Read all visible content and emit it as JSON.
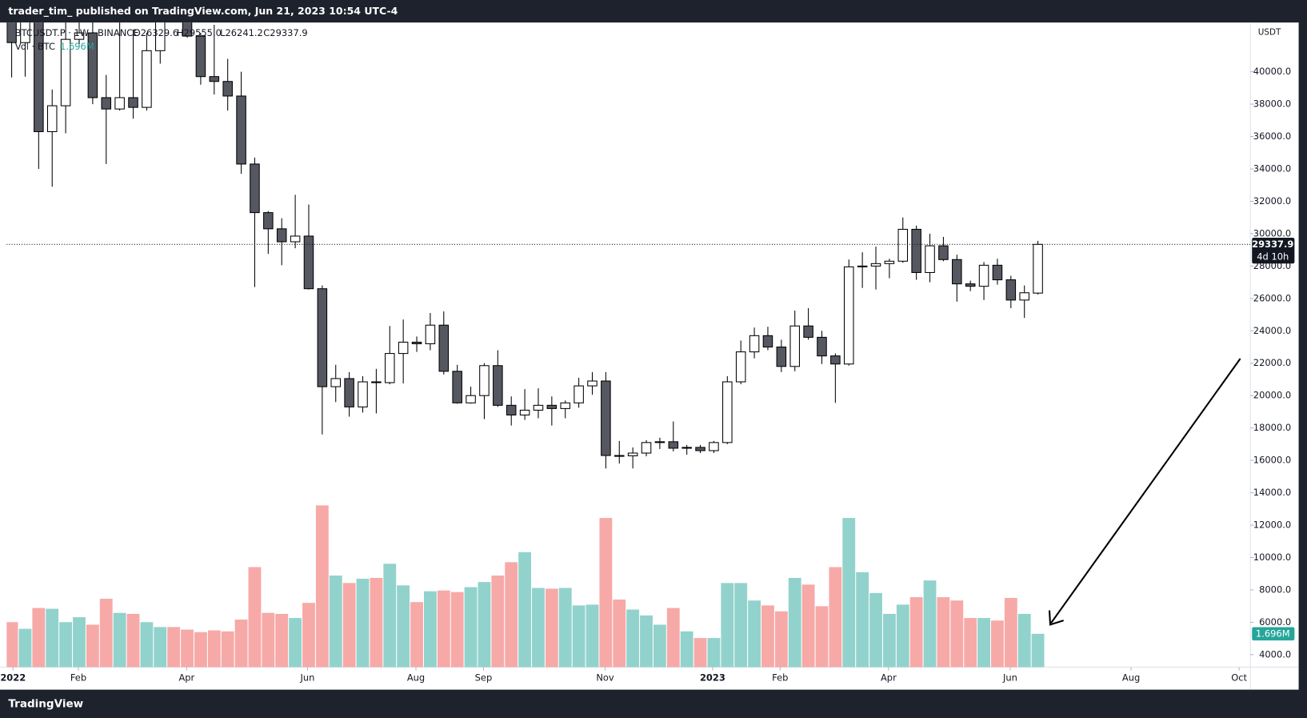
{
  "header": {
    "text": "trader_tim_ published on TradingView.com, Jun 21, 2023 10:54 UTC-4"
  },
  "footer": {
    "brand": "TradingView"
  },
  "chart_data": {
    "type": "candlestick",
    "symbol": "BTCUSDT.P · 1W · BINANCE",
    "ohlc_labels": [
      "O26329.6",
      "H29555.0",
      "L26241.2",
      "C29337.9"
    ],
    "volume_title": "Vol · BTC",
    "volume_label": "1.696M",
    "currency": "USDT",
    "countdown": "4d 10h",
    "open": [
      46200,
      41800,
      43100,
      36300,
      37900,
      42000,
      42400,
      38400,
      37700,
      38400,
      37800,
      41300,
      46800,
      46400,
      42200,
      39700,
      39400,
      38500,
      34300,
      31300,
      30300,
      29500,
      29850,
      26600,
      20550,
      21050,
      19300,
      20850,
      20800,
      22600,
      23300,
      23200,
      24350,
      21500,
      19550,
      20000,
      21850,
      19400,
      18800,
      19100,
      19400,
      19200,
      19550,
      20600,
      20900,
      16300,
      16280,
      16450,
      17100,
      17150,
      16750,
      16800,
      16600,
      17100,
      20850,
      22700,
      23700,
      23000,
      21800,
      24300,
      23600,
      22450,
      21950,
      27950,
      28000,
      28150,
      28300,
      30270,
      27600,
      29250,
      28400,
      26900,
      26750,
      28050,
      27150,
      25900,
      26329.6
    ],
    "high": [
      47500,
      44500,
      43500,
      38900,
      44500,
      45850,
      44800,
      39800,
      45400,
      42600,
      42400,
      48200,
      48200,
      47200,
      42400,
      42900,
      40800,
      40000,
      34700,
      31400,
      30950,
      32400,
      31800,
      26800,
      21900,
      21450,
      21200,
      21650,
      24300,
      24700,
      23650,
      25100,
      25200,
      21900,
      20550,
      22000,
      22800,
      19950,
      20400,
      20450,
      19950,
      19700,
      21100,
      21450,
      21450,
      17200,
      16800,
      17250,
      17400,
      18400,
      16950,
      16950,
      17200,
      21200,
      23400,
      24200,
      24250,
      23450,
      25250,
      25400,
      24000,
      22600,
      28400,
      28850,
      29200,
      28450,
      31000,
      30500,
      30000,
      29800,
      28700,
      27100,
      28250,
      28450,
      27400,
      26800,
      29555
    ],
    "low": [
      39650,
      39700,
      34000,
      32900,
      36200,
      41700,
      38000,
      34300,
      37600,
      37100,
      37600,
      40500,
      45100,
      42100,
      39200,
      38600,
      37600,
      33700,
      26700,
      28750,
      28050,
      29100,
      26550,
      17600,
      19600,
      18700,
      18950,
      18900,
      20700,
      20750,
      22700,
      22800,
      21300,
      19500,
      19500,
      18550,
      19300,
      18150,
      18500,
      18600,
      18150,
      18600,
      19250,
      20050,
      15500,
      15800,
      15500,
      16250,
      16700,
      16550,
      16350,
      16450,
      16450,
      17000,
      20700,
      22300,
      22800,
      21450,
      21500,
      23450,
      21950,
      19550,
      21850,
      26650,
      26550,
      27250,
      28200,
      27150,
      27000,
      28300,
      25800,
      26450,
      25900,
      26850,
      25400,
      24800,
      26241.2
    ],
    "close": [
      41800,
      43100,
      36300,
      37900,
      42000,
      42400,
      38400,
      37700,
      38400,
      37800,
      41300,
      46800,
      46400,
      42200,
      39700,
      39400,
      38500,
      34300,
      31300,
      30300,
      29500,
      29850,
      26600,
      20550,
      21050,
      19300,
      20850,
      20800,
      22600,
      23300,
      23200,
      24350,
      21500,
      19550,
      20000,
      21850,
      19400,
      18800,
      19100,
      19400,
      19200,
      19550,
      20600,
      20900,
      16300,
      16280,
      16450,
      17100,
      17150,
      16750,
      16800,
      16600,
      17100,
      20850,
      22700,
      23700,
      23000,
      21800,
      24300,
      23600,
      22450,
      21950,
      27950,
      28000,
      28150,
      28300,
      30270,
      27600,
      29250,
      28400,
      26900,
      26750,
      28050,
      27150,
      25900,
      26350,
      29337.9
    ],
    "volume": [
      2.29,
      1.95,
      3.01,
      2.97,
      2.29,
      2.54,
      2.16,
      3.48,
      2.76,
      2.71,
      2.29,
      2.04,
      2.04,
      1.91,
      1.78,
      1.87,
      1.82,
      2.42,
      5.09,
      2.76,
      2.71,
      2.5,
      3.27,
      8.23,
      4.66,
      4.28,
      4.5,
      4.54,
      5.26,
      4.16,
      3.31,
      3.86,
      3.9,
      3.82,
      4.07,
      4.33,
      4.66,
      5.34,
      5.85,
      4.03,
      3.99,
      4.03,
      3.14,
      3.18,
      7.59,
      3.44,
      2.93,
      2.63,
      2.16,
      3.01,
      1.82,
      1.48,
      1.48,
      4.28,
      4.28,
      3.39,
      3.14,
      2.84,
      4.54,
      4.2,
      3.1,
      5.09,
      7.59,
      4.83,
      3.77,
      2.71,
      3.18,
      3.56,
      4.41,
      3.56,
      3.39,
      2.5,
      2.5,
      2.37,
      3.52,
      2.71,
      1.696
    ],
    "up_color": "#ffffff",
    "down_color": "#555861",
    "wick_color": "#000000",
    "volume_up_color": "#92d2cc",
    "volume_down_color": "#f7a9a7",
    "volume_badge_color": "#26a69a",
    "xlim": [
      -0.37,
      91.73
    ],
    "xticks": [
      {
        "value": 0.1,
        "label": "2022"
      },
      {
        "value": 4.94,
        "label": "Feb"
      },
      {
        "value": 12.96,
        "label": "Apr"
      },
      {
        "value": 21.91,
        "label": "Jun"
      },
      {
        "value": 29.94,
        "label": "Aug"
      },
      {
        "value": 34.94,
        "label": "Sep"
      },
      {
        "value": 43.95,
        "label": "Nov"
      },
      {
        "value": 51.91,
        "label": "2023"
      },
      {
        "value": 56.91,
        "label": "Feb"
      },
      {
        "value": 64.94,
        "label": "Apr"
      },
      {
        "value": 73.95,
        "label": "Jun"
      },
      {
        "value": 82.9,
        "label": "Aug"
      },
      {
        "value": 90.9,
        "label": "Oct"
      }
    ],
    "ylim": [
      3230,
      43040
    ],
    "yticks": [
      {
        "value": 4000,
        "label": "4000.0"
      },
      {
        "value": 6000,
        "label": "6000.0"
      },
      {
        "value": 8000,
        "label": "8000.0"
      },
      {
        "value": 10000,
        "label": "10000.0"
      },
      {
        "value": 12000,
        "label": "12000.0"
      },
      {
        "value": 14000,
        "label": "14000.0"
      },
      {
        "value": 16000,
        "label": "16000.0"
      },
      {
        "value": 18000,
        "label": "18000.0"
      },
      {
        "value": 20000,
        "label": "20000.0"
      },
      {
        "value": 22000,
        "label": "22000.0"
      },
      {
        "value": 24000,
        "label": "24000.0"
      },
      {
        "value": 26000,
        "label": "26000.0"
      },
      {
        "value": 28000,
        "label": "28000.0"
      },
      {
        "value": 30000,
        "label": "30000.0"
      },
      {
        "value": 32000,
        "label": "32000.0"
      },
      {
        "value": 34000,
        "label": "34000.0"
      },
      {
        "value": 36000,
        "label": "36000.0"
      },
      {
        "value": 38000,
        "label": "38000.0"
      },
      {
        "value": 40000,
        "label": "40000.0"
      }
    ],
    "vlim": [
      0,
      32.8
    ]
  }
}
